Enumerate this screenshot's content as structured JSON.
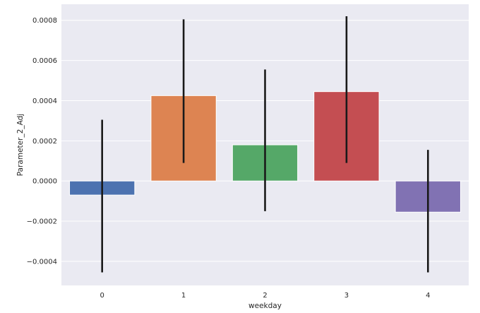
{
  "chart_data": {
    "type": "bar",
    "title": "",
    "xlabel": "weekday",
    "ylabel": "Parameter_2_Adj",
    "categories": [
      "0",
      "1",
      "2",
      "3",
      "4"
    ],
    "values": [
      -7e-05,
      0.000425,
      0.00018,
      0.000445,
      -0.000155
    ],
    "error_low": [
      -0.000455,
      9e-05,
      -0.00015,
      9e-05,
      -0.000455
    ],
    "error_high": [
      0.000305,
      0.000805,
      0.000555,
      0.00082,
      0.000155
    ],
    "colors": [
      "#4c72b0",
      "#dd8452",
      "#55a868",
      "#c44e52",
      "#8172b3"
    ],
    "ylim": [
      -0.00052,
      0.00088
    ],
    "yticks": [
      -0.0004,
      -0.0002,
      0.0,
      0.0002,
      0.0004,
      0.0006,
      0.0008
    ],
    "ytick_labels": [
      "−0.0004",
      "−0.0002",
      "0.0000",
      "0.0002",
      "0.0004",
      "0.0006",
      "0.0008"
    ],
    "grid": true,
    "background": "#eaeaf2",
    "errorbar_color": "#1a1a1a"
  }
}
